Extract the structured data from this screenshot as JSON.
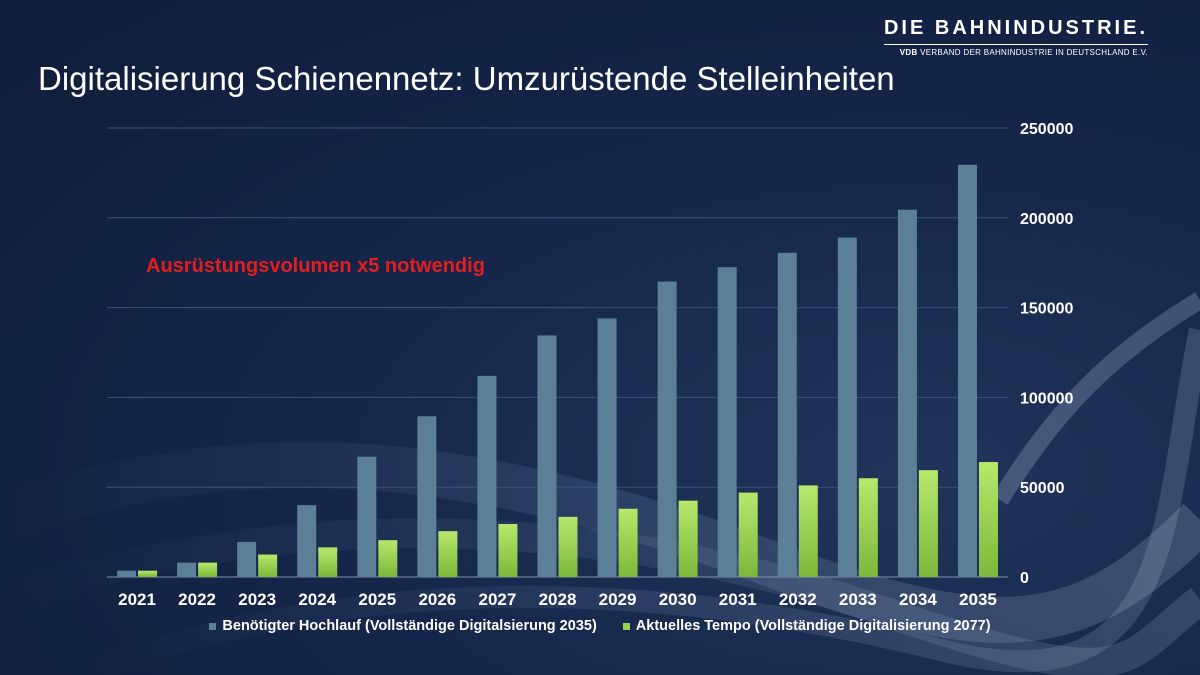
{
  "logo": {
    "main": "DIE BAHNINDUSTRIE.",
    "sub_bold": "VDB",
    "sub": "VERBAND DER BAHNINDUSTRIE IN DEUTSCHLAND E.V."
  },
  "title": "Digitalisierung Schienennetz: Umzurüstende Stelleinheiten",
  "annotation": "Ausrüstungsvolumen x5 notwendig",
  "colors": {
    "series1": "#5b7f96",
    "series2": "#9bd34e",
    "grid": "#3d5276",
    "annotation": "#e41e1e"
  },
  "chart_data": {
    "type": "bar",
    "title": "Digitalisierung Schienennetz: Umzurüstende Stelleinheiten",
    "xlabel": "",
    "ylabel": "",
    "ylim": [
      0,
      250000
    ],
    "yticks": [
      0,
      50000,
      100000,
      150000,
      200000,
      250000
    ],
    "ytick_labels": [
      "0",
      "50000",
      "100000",
      "150000",
      "200000",
      "250000"
    ],
    "y_axis_side": "right",
    "grid": true,
    "legend_position": "bottom",
    "categories": [
      "2021",
      "2022",
      "2023",
      "2024",
      "2025",
      "2026",
      "2027",
      "2028",
      "2029",
      "2030",
      "2031",
      "2032",
      "2033",
      "2034",
      "2035"
    ],
    "series": [
      {
        "name": "Benötigter Hochlauf (Vollständige Digitalsierung 2035)",
        "values": [
          3500,
          8000,
          19500,
          40000,
          67000,
          89500,
          112000,
          134500,
          144000,
          164500,
          172500,
          180500,
          189000,
          204500,
          229500
        ]
      },
      {
        "name": "Aktuelles Tempo (Vollständige Digitalisierung 2077)",
        "values": [
          3500,
          8000,
          12500,
          16500,
          20500,
          25500,
          29500,
          33500,
          38000,
          42500,
          47000,
          51000,
          55000,
          59500,
          64000
        ]
      }
    ]
  }
}
